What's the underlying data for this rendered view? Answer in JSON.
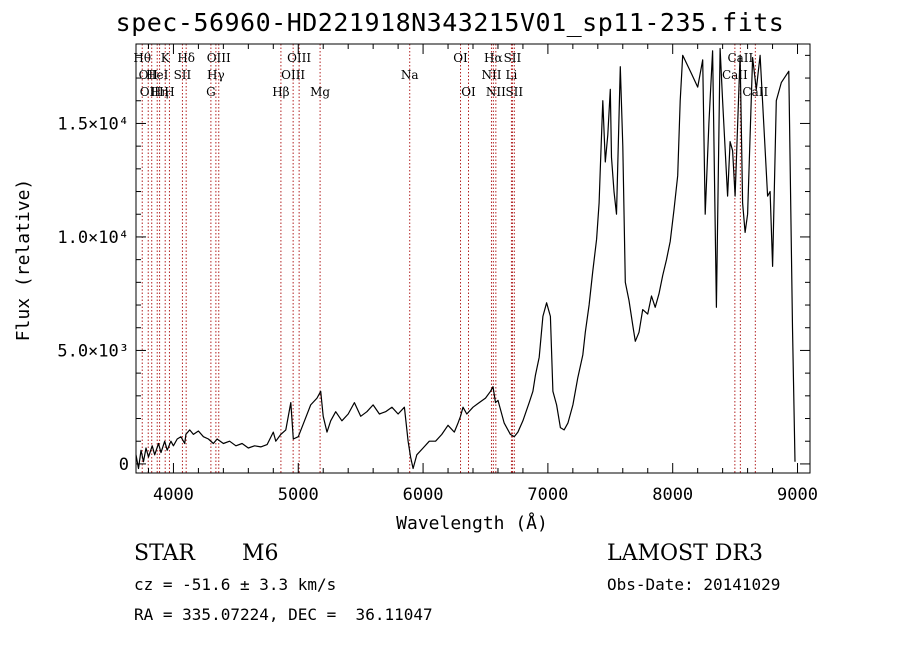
{
  "chart_data": {
    "type": "line",
    "title": "spec-56960-HD221918N343215V01_sp11-235.fits",
    "xlabel": "Wavelength (Å)",
    "ylabel": "Flux (relative)",
    "xlim": [
      3700,
      9100
    ],
    "ylim": [
      -400,
      18500
    ],
    "x_ticks": [
      4000,
      5000,
      6000,
      7000,
      8000,
      9000
    ],
    "x_tick_labels": [
      "4000",
      "5000",
      "6000",
      "7000",
      "8000",
      "9000"
    ],
    "y_ticks": [
      0,
      5000,
      10000,
      15000
    ],
    "y_tick_labels": [
      "0",
      "5.0×10³",
      "1.0×10⁴",
      "1.5×10⁴"
    ],
    "grid": false,
    "series": [
      {
        "points": [
          [
            3700,
            400
          ],
          [
            3720,
            -200
          ],
          [
            3740,
            600
          ],
          [
            3760,
            100
          ],
          [
            3780,
            700
          ],
          [
            3800,
            300
          ],
          [
            3830,
            800
          ],
          [
            3850,
            400
          ],
          [
            3880,
            900
          ],
          [
            3900,
            500
          ],
          [
            3930,
            1000
          ],
          [
            3950,
            600
          ],
          [
            3980,
            1000
          ],
          [
            4000,
            800
          ],
          [
            4030,
            1100
          ],
          [
            4060,
            1200
          ],
          [
            4090,
            900
          ],
          [
            4100,
            1300
          ],
          [
            4130,
            1500
          ],
          [
            4160,
            1300
          ],
          [
            4200,
            1450
          ],
          [
            4240,
            1200
          ],
          [
            4280,
            1100
          ],
          [
            4320,
            900
          ],
          [
            4350,
            1100
          ],
          [
            4400,
            900
          ],
          [
            4450,
            1000
          ],
          [
            4500,
            800
          ],
          [
            4550,
            900
          ],
          [
            4600,
            700
          ],
          [
            4650,
            800
          ],
          [
            4700,
            750
          ],
          [
            4750,
            850
          ],
          [
            4800,
            1400
          ],
          [
            4820,
            1000
          ],
          [
            4860,
            1300
          ],
          [
            4900,
            1500
          ],
          [
            4940,
            2700
          ],
          [
            4960,
            1100
          ],
          [
            5000,
            1200
          ],
          [
            5050,
            1900
          ],
          [
            5100,
            2600
          ],
          [
            5150,
            2900
          ],
          [
            5180,
            3200
          ],
          [
            5200,
            2100
          ],
          [
            5230,
            1400
          ],
          [
            5260,
            1900
          ],
          [
            5300,
            2300
          ],
          [
            5350,
            1900
          ],
          [
            5400,
            2200
          ],
          [
            5450,
            2700
          ],
          [
            5500,
            2100
          ],
          [
            5550,
            2300
          ],
          [
            5600,
            2600
          ],
          [
            5650,
            2200
          ],
          [
            5700,
            2300
          ],
          [
            5750,
            2500
          ],
          [
            5800,
            2200
          ],
          [
            5850,
            2500
          ],
          [
            5880,
            1000
          ],
          [
            5900,
            300
          ],
          [
            5920,
            -200
          ],
          [
            5950,
            400
          ],
          [
            6000,
            700
          ],
          [
            6050,
            1000
          ],
          [
            6100,
            1000
          ],
          [
            6150,
            1300
          ],
          [
            6200,
            1700
          ],
          [
            6250,
            1400
          ],
          [
            6280,
            1800
          ],
          [
            6300,
            2100
          ],
          [
            6320,
            2500
          ],
          [
            6350,
            2200
          ],
          [
            6400,
            2500
          ],
          [
            6450,
            2700
          ],
          [
            6500,
            2900
          ],
          [
            6540,
            3200
          ],
          [
            6560,
            3400
          ],
          [
            6580,
            2700
          ],
          [
            6600,
            2800
          ],
          [
            6650,
            1800
          ],
          [
            6700,
            1300
          ],
          [
            6730,
            1200
          ],
          [
            6760,
            1400
          ],
          [
            6800,
            1900
          ],
          [
            6850,
            2700
          ],
          [
            6880,
            3200
          ],
          [
            6900,
            3900
          ],
          [
            6930,
            4700
          ],
          [
            6960,
            6500
          ],
          [
            6990,
            7100
          ],
          [
            7020,
            6500
          ],
          [
            7040,
            3200
          ],
          [
            7070,
            2600
          ],
          [
            7100,
            1600
          ],
          [
            7130,
            1500
          ],
          [
            7160,
            1800
          ],
          [
            7200,
            2600
          ],
          [
            7240,
            3800
          ],
          [
            7280,
            4800
          ],
          [
            7300,
            5800
          ],
          [
            7330,
            7000
          ],
          [
            7360,
            8500
          ],
          [
            7390,
            9900
          ],
          [
            7410,
            11500
          ],
          [
            7420,
            13000
          ],
          [
            7440,
            16000
          ],
          [
            7460,
            13300
          ],
          [
            7480,
            14500
          ],
          [
            7500,
            16500
          ],
          [
            7510,
            13500
          ],
          [
            7530,
            12000
          ],
          [
            7550,
            11000
          ],
          [
            7580,
            17500
          ],
          [
            7600,
            14000
          ],
          [
            7620,
            8000
          ],
          [
            7650,
            7200
          ],
          [
            7680,
            6100
          ],
          [
            7700,
            5400
          ],
          [
            7730,
            5800
          ],
          [
            7760,
            6800
          ],
          [
            7800,
            6600
          ],
          [
            7830,
            7400
          ],
          [
            7860,
            6900
          ],
          [
            7890,
            7500
          ],
          [
            7920,
            8300
          ],
          [
            7950,
            9000
          ],
          [
            7980,
            9800
          ],
          [
            8010,
            11200
          ],
          [
            8040,
            12700
          ],
          [
            8060,
            16000
          ],
          [
            8080,
            18000
          ],
          [
            8150,
            17200
          ],
          [
            8200,
            16600
          ],
          [
            8240,
            17800
          ],
          [
            8260,
            11000
          ],
          [
            8290,
            15000
          ],
          [
            8320,
            18200
          ],
          [
            8350,
            6900
          ],
          [
            8380,
            18300
          ],
          [
            8400,
            16000
          ],
          [
            8440,
            11800
          ],
          [
            8460,
            14200
          ],
          [
            8480,
            13800
          ],
          [
            8500,
            11800
          ],
          [
            8540,
            18000
          ],
          [
            8560,
            11500
          ],
          [
            8580,
            10200
          ],
          [
            8600,
            11000
          ],
          [
            8640,
            17900
          ],
          [
            8670,
            16500
          ],
          [
            8700,
            18000
          ],
          [
            8760,
            11800
          ],
          [
            8780,
            12000
          ],
          [
            8800,
            8700
          ],
          [
            8830,
            16000
          ],
          [
            8870,
            16800
          ],
          [
            8930,
            17300
          ],
          [
            8960,
            6000
          ],
          [
            8980,
            100
          ]
        ]
      }
    ],
    "lines": [
      {
        "x": 3750,
        "label": "Hθ",
        "row": 0
      },
      {
        "x": 3798,
        "label": "OII",
        "row": 1
      },
      {
        "x": 3826,
        "label": "OIII",
        "row": 2
      },
      {
        "x": 3870,
        "label": "HeI",
        "row": 1
      },
      {
        "x": 3889,
        "label": "Hη",
        "row": 2
      },
      {
        "x": 3934,
        "label": "K",
        "row": 0
      },
      {
        "x": 3968,
        "label": "H",
        "row": 2
      },
      {
        "x": 4072,
        "label": "SII",
        "row": 1
      },
      {
        "x": 4102,
        "label": "Hδ",
        "row": 0
      },
      {
        "x": 4300,
        "label": "G",
        "row": 2
      },
      {
        "x": 4340,
        "label": "Hγ",
        "row": 1
      },
      {
        "x": 4363,
        "label": "OIII",
        "row": 0
      },
      {
        "x": 4861,
        "label": "Hβ",
        "row": 2
      },
      {
        "x": 4959,
        "label": "OIII",
        "row": 1
      },
      {
        "x": 5007,
        "label": "OIII",
        "row": 0
      },
      {
        "x": 5175,
        "label": "Mg",
        "row": 2
      },
      {
        "x": 5893,
        "label": "Na",
        "row": 1
      },
      {
        "x": 6300,
        "label": "OI",
        "row": 0
      },
      {
        "x": 6364,
        "label": "OI",
        "row": 2
      },
      {
        "x": 6548,
        "label": "NII",
        "row": 1
      },
      {
        "x": 6563,
        "label": "Hα",
        "row": 0
      },
      {
        "x": 6583,
        "label": "NII",
        "row": 2
      },
      {
        "x": 6708,
        "label": "Li",
        "row": 1
      },
      {
        "x": 6716,
        "label": "SII",
        "row": 0
      },
      {
        "x": 6731,
        "label": "SII",
        "row": 2
      },
      {
        "x": 8498,
        "label": "CaII",
        "row": 1
      },
      {
        "x": 8542,
        "label": "CaII",
        "row": 0
      },
      {
        "x": 8662,
        "label": "CaII",
        "row": 2
      }
    ]
  },
  "info": {
    "object_class": "STAR",
    "subclass": "M6",
    "cz": "cz = -51.6 ± 3.3 km/s",
    "coords": "RA = 335.07224, DEC =  36.11047",
    "survey": "LAMOST DR3",
    "obs_date": "Obs-Date: 20141029"
  },
  "colors": {
    "axis": "#000000",
    "spectrum": "#000000",
    "lines": "#b22222"
  }
}
